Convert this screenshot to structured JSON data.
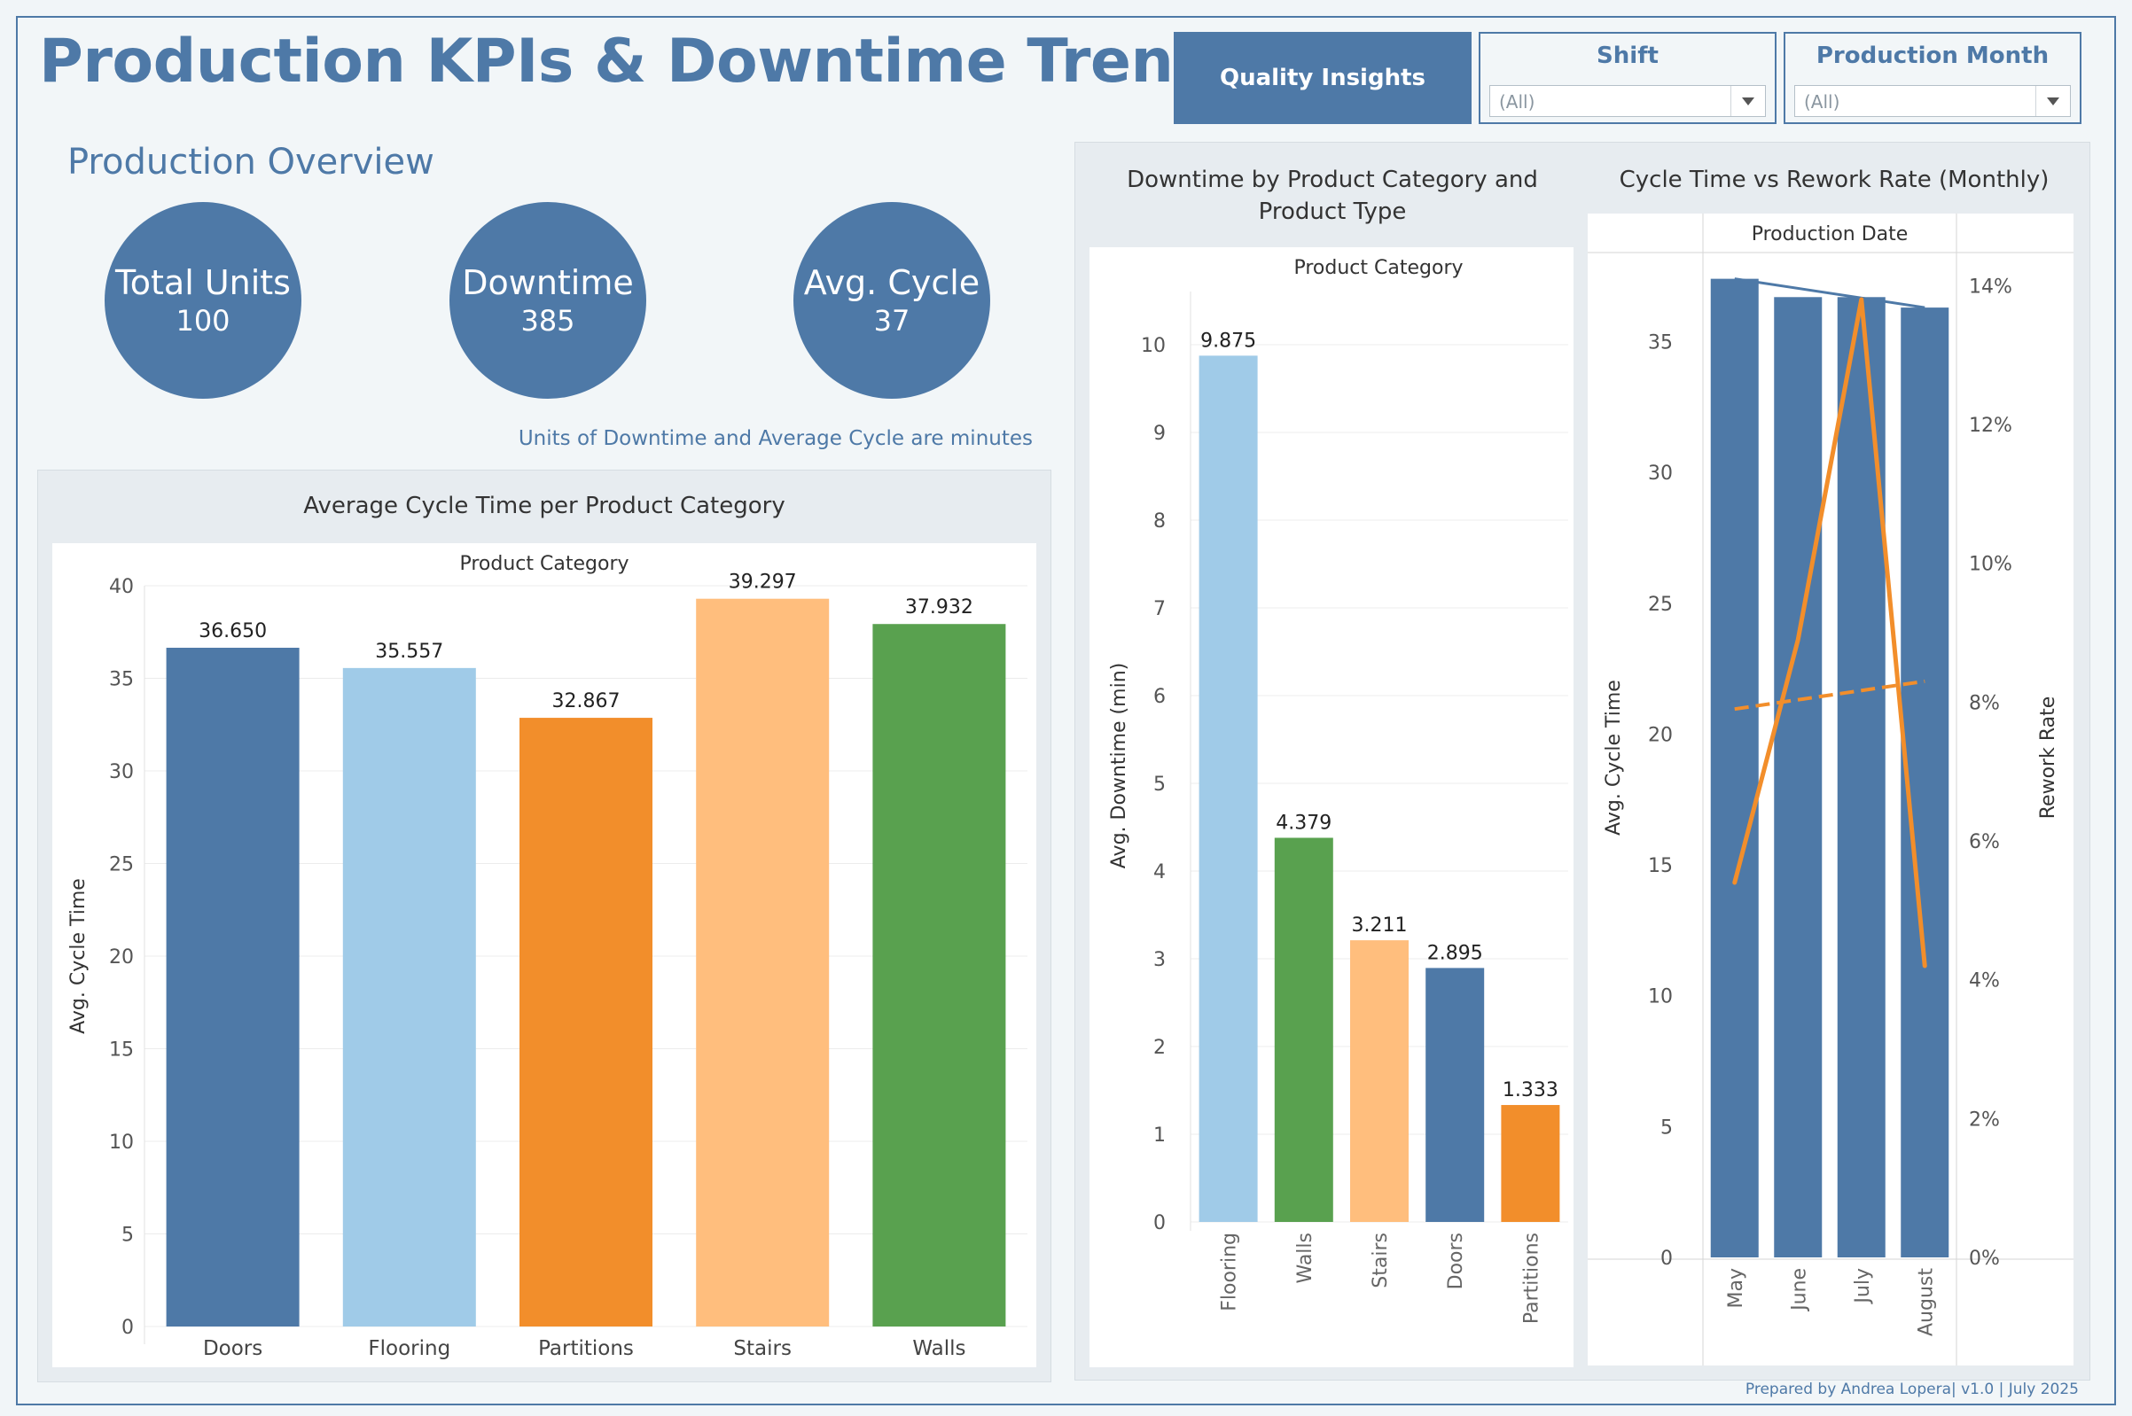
{
  "header": {
    "title": "Production KPIs & Downtime Trends",
    "quality_button": "Quality Insights",
    "filters": [
      {
        "label": "Shift",
        "value": "(All)"
      },
      {
        "label": "Production Month",
        "value": "(All)"
      }
    ]
  },
  "overview": {
    "title": "Production Overview",
    "kpis": [
      {
        "label": "Total Units",
        "value": "100"
      },
      {
        "label": "Downtime",
        "value": "385"
      },
      {
        "label": "Avg. Cycle",
        "value": "37"
      }
    ],
    "note": "Units of Downtime and Average Cycle are minutes"
  },
  "footer": "Prepared by Andrea Lopera| v1.0 | July 2025",
  "colors": {
    "blue": "#4e79a7",
    "light_blue": "#a0cbe8",
    "orange": "#f28e2b",
    "light_orange": "#ffbe7d",
    "green": "#59a14f"
  },
  "chart_data": [
    {
      "type": "bar",
      "title": "Average Cycle Time per Product Category",
      "header": "Product Category",
      "categories": [
        "Doors",
        "Flooring",
        "Partitions",
        "Stairs",
        "Walls"
      ],
      "values": [
        36.65,
        35.557,
        32.867,
        39.297,
        37.932
      ],
      "value_labels": [
        "36.650",
        "35.557",
        "32.867",
        "39.297",
        "37.932"
      ],
      "colors": [
        "#4e79a7",
        "#a0cbe8",
        "#f28e2b",
        "#ffbe7d",
        "#59a14f"
      ],
      "ylabel": "Avg. Cycle Time",
      "ylim": [
        0,
        40
      ],
      "yticks": [
        0,
        5,
        10,
        15,
        20,
        25,
        30,
        35,
        40
      ],
      "grid": true
    },
    {
      "type": "bar",
      "title": "Downtime by Product Category and Product Type",
      "title_lines": [
        "Downtime by Product Category and",
        "Product Type"
      ],
      "header": "Product Category",
      "categories": [
        "Flooring",
        "Walls",
        "Stairs",
        "Doors",
        "Partitions"
      ],
      "values": [
        9.875,
        4.379,
        3.211,
        2.895,
        1.333
      ],
      "value_labels": [
        "9.875",
        "4.379",
        "3.211",
        "2.895",
        "1.333"
      ],
      "colors": [
        "#a0cbe8",
        "#59a14f",
        "#ffbe7d",
        "#4e79a7",
        "#f28e2b"
      ],
      "ylabel": "Avg. Downtime (min)",
      "ylim": [
        0,
        10
      ],
      "yticks": [
        0,
        1,
        2,
        3,
        4,
        5,
        6,
        7,
        8,
        9,
        10
      ],
      "grid": true
    },
    {
      "type": "bar",
      "title": "Cycle Time vs Rework Rate (Monthly)",
      "header": "Production Date",
      "categories": [
        "May",
        "June",
        "July",
        "August"
      ],
      "series": [
        {
          "name": "Avg. Cycle Time",
          "type": "bar",
          "axis": "left",
          "values": [
            37.4,
            36.7,
            36.7,
            36.3
          ],
          "color": "#4e79a7"
        },
        {
          "name": "Rework Rate",
          "type": "line",
          "axis": "right",
          "values": [
            0.054,
            0.089,
            0.138,
            0.042
          ],
          "color": "#f28e2b"
        }
      ],
      "trendlines": [
        {
          "series": "Avg. Cycle Time",
          "start": 37.4,
          "end": 36.3,
          "style": "solid"
        },
        {
          "series": "Rework Rate",
          "start": 0.079,
          "end": 0.083,
          "style": "dashed"
        }
      ],
      "ylabel": "Avg. Cycle Time",
      "ylim": [
        0,
        38.2
      ],
      "yticks": [
        0,
        5,
        10,
        15,
        20,
        25,
        30,
        35
      ],
      "y2label": "Rework Rate",
      "y2lim": [
        0,
        0.144
      ],
      "y2ticks": [
        0,
        0.02,
        0.04,
        0.06,
        0.08,
        0.1,
        0.12,
        0.14
      ],
      "y2ticklabels": [
        "0%",
        "2%",
        "4%",
        "6%",
        "8%",
        "10%",
        "12%",
        "14%"
      ],
      "grid": false
    }
  ]
}
